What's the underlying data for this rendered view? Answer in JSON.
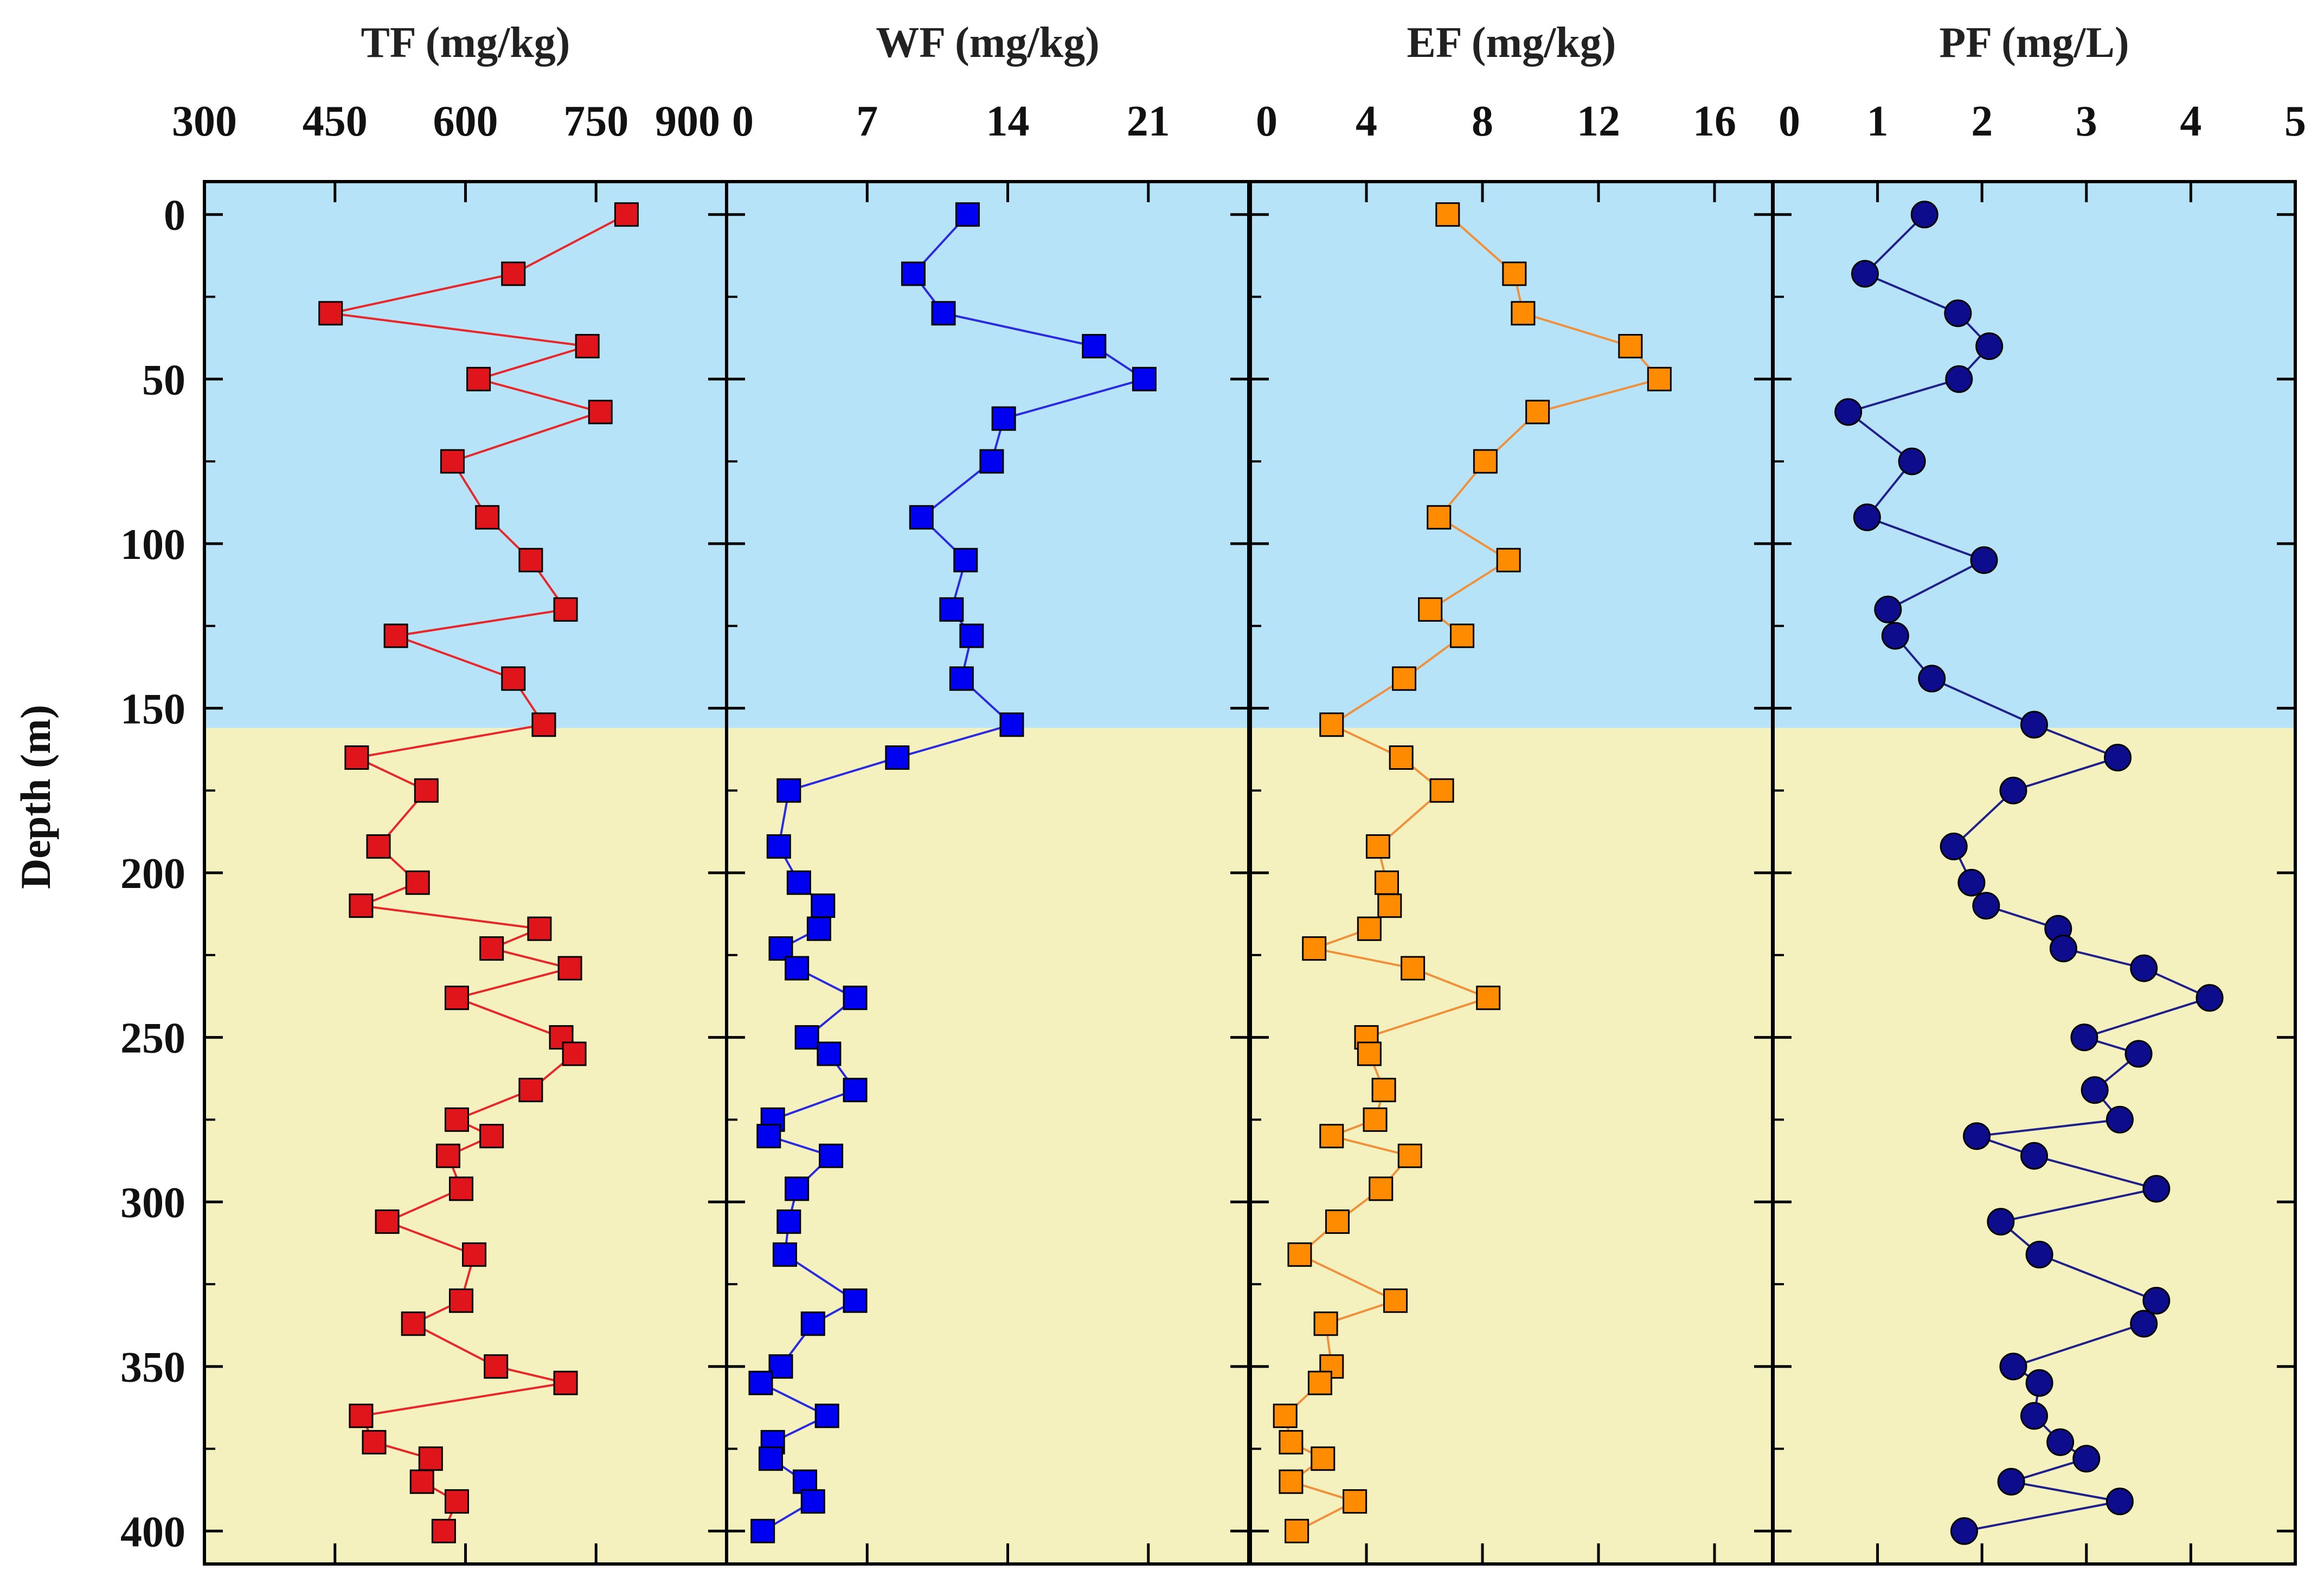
{
  "chart_data": {
    "type": "scatter",
    "ylabel": "Depth (m)",
    "y_ticks": [
      "0",
      "50",
      "100",
      "150",
      "200",
      "250",
      "300",
      "350",
      "400"
    ],
    "ylim": [
      -10,
      410
    ],
    "depth_boundary": 156,
    "colors": {
      "upper_zone": "#b7e3f8",
      "lower_zone": "#f5f1bf"
    },
    "panels": [
      {
        "title": "TF (mg/kg)",
        "xlim": [
          300,
          900
        ],
        "x_ticks": [
          "300",
          "450",
          "600",
          "750",
          "900"
        ],
        "marker": "square",
        "line_color": "#e8272a",
        "fill": "#e0141b",
        "depth": [
          0,
          18,
          30,
          40,
          50,
          60,
          75,
          92,
          105,
          120,
          128,
          141,
          155,
          165,
          175,
          192,
          203,
          210,
          217,
          223,
          229,
          238,
          250,
          255,
          266,
          275,
          280,
          286,
          296,
          306,
          316,
          330,
          337,
          350,
          355,
          365,
          373,
          378,
          385,
          391,
          400
        ],
        "values": [
          785,
          655,
          445,
          740,
          615,
          755,
          585,
          625,
          675,
          715,
          520,
          655,
          690,
          475,
          555,
          500,
          545,
          480,
          685,
          630,
          720,
          590,
          710,
          725,
          675,
          590,
          630,
          580,
          595,
          510,
          610,
          595,
          540,
          635,
          715,
          480,
          495,
          560,
          550,
          590,
          575
        ]
      },
      {
        "title": "WF (mg/kg)",
        "xlim": [
          0,
          26
        ],
        "x_ticks": [
          "0",
          "7",
          "14",
          "21"
        ],
        "marker": "square",
        "line_color": "#2a2ae0",
        "fill": "#0000f0",
        "depth": [
          0,
          18,
          30,
          40,
          50,
          62,
          75,
          92,
          105,
          120,
          128,
          141,
          155,
          165,
          175,
          192,
          203,
          210,
          217,
          223,
          229,
          238,
          250,
          255,
          266,
          275,
          280,
          286,
          296,
          306,
          316,
          330,
          337,
          350,
          355,
          365,
          373,
          378,
          385,
          391,
          400
        ],
        "values": [
          12,
          9.3,
          10.8,
          18.3,
          20.8,
          13.8,
          13.2,
          9.7,
          11.9,
          11.2,
          12.2,
          11.7,
          14.2,
          8.5,
          3.1,
          2.6,
          3.6,
          4.8,
          4.6,
          2.7,
          3.5,
          6.4,
          4.0,
          5.1,
          6.4,
          2.3,
          2.1,
          5.2,
          3.5,
          3.1,
          2.9,
          6.4,
          4.3,
          2.7,
          1.7,
          5.0,
          2.3,
          2.2,
          3.9,
          4.3,
          1.8
        ]
      },
      {
        "title": "EF (mg/kg)",
        "xlim": [
          0,
          18
        ],
        "x_ticks": [
          "0",
          "4",
          "8",
          "12",
          "16"
        ],
        "marker": "square",
        "line_color": "#f0903a",
        "fill": "#ff8c00",
        "depth": [
          0,
          18,
          30,
          40,
          50,
          60,
          75,
          92,
          105,
          120,
          128,
          141,
          155,
          165,
          175,
          192,
          203,
          210,
          217,
          223,
          229,
          238,
          250,
          255,
          266,
          275,
          280,
          286,
          296,
          306,
          316,
          330,
          337,
          350,
          355,
          365,
          373,
          378,
          385,
          391,
          400
        ],
        "values": [
          6.8,
          9.1,
          9.4,
          13.1,
          14.1,
          9.9,
          8.1,
          6.5,
          8.9,
          6.2,
          7.3,
          5.3,
          2.8,
          5.2,
          6.6,
          4.4,
          4.7,
          4.8,
          4.1,
          2.2,
          5.6,
          8.2,
          4.0,
          4.1,
          4.6,
          4.3,
          2.8,
          5.5,
          4.5,
          3.0,
          1.7,
          5.0,
          2.6,
          2.8,
          2.4,
          1.2,
          1.4,
          2.5,
          1.4,
          3.6,
          1.6
        ]
      },
      {
        "title": "PF (mg/L)",
        "xlim": [
          0,
          5
        ],
        "x_ticks": [
          "0",
          "1",
          "2",
          "3",
          "4",
          "5"
        ],
        "marker": "circle",
        "line_color": "#20208a",
        "fill": "#0c0c8c",
        "depth": [
          0,
          18,
          30,
          40,
          50,
          60,
          75,
          92,
          105,
          120,
          128,
          141,
          155,
          165,
          175,
          192,
          203,
          210,
          217,
          223,
          229,
          238,
          250,
          255,
          266,
          275,
          280,
          286,
          296,
          306,
          316,
          330,
          337,
          350,
          355,
          365,
          373,
          378,
          385,
          391,
          400
        ],
        "values": [
          1.45,
          0.88,
          1.77,
          2.07,
          1.78,
          0.72,
          1.33,
          0.9,
          2.02,
          1.1,
          1.17,
          1.52,
          2.5,
          3.3,
          2.3,
          1.73,
          1.9,
          2.04,
          2.73,
          2.78,
          3.55,
          4.18,
          2.98,
          3.5,
          3.08,
          3.32,
          1.95,
          2.5,
          3.67,
          2.18,
          2.55,
          3.67,
          3.55,
          2.3,
          2.55,
          2.5,
          2.75,
          3.0,
          2.28,
          3.32,
          1.83
        ]
      }
    ]
  }
}
